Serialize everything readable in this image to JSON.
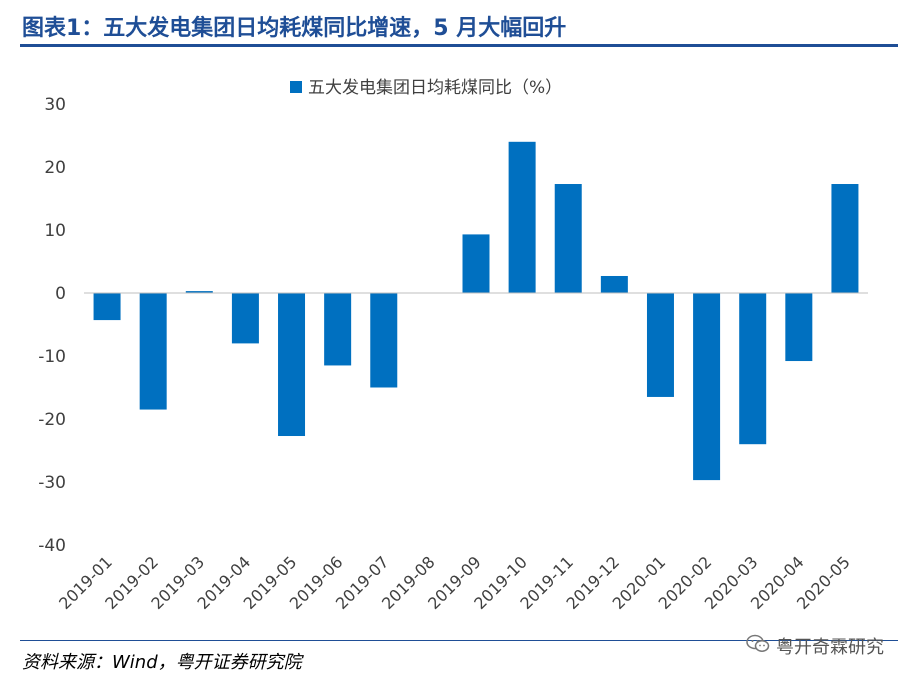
{
  "header": {
    "title": "图表1：五大发电集团日均耗煤同比增速，5 月大幅回升"
  },
  "footer": {
    "source": "资料来源：Wind，粤开证券研究院",
    "watermark": "粤开奇霖研究"
  },
  "colors": {
    "accent": "#1f4e96",
    "bar": "#0070c0"
  },
  "chart_data": {
    "type": "bar",
    "title": "",
    "xlabel": "",
    "ylabel": "",
    "ylim": [
      -40,
      30
    ],
    "yticks": [
      30,
      20,
      10,
      0,
      -10,
      -20,
      -30,
      -40
    ],
    "grid": false,
    "legend_position": "top-center",
    "categories": [
      "2019-01",
      "2019-02",
      "2019-03",
      "2019-04",
      "2019-05",
      "2019-06",
      "2019-07",
      "2019-08",
      "2019-09",
      "2019-10",
      "2019-11",
      "2019-12",
      "2020-01",
      "2020-02",
      "2020-03",
      "2020-04",
      "2020-05"
    ],
    "series": [
      {
        "name": "五大发电集团日均耗煤同比（%）",
        "values": [
          -4.3,
          -18.5,
          0.3,
          -8.0,
          -22.7,
          -11.5,
          -15.0,
          null,
          9.3,
          24.0,
          17.3,
          2.7,
          -16.5,
          -29.7,
          -24.0,
          -10.8,
          17.3
        ]
      }
    ]
  }
}
